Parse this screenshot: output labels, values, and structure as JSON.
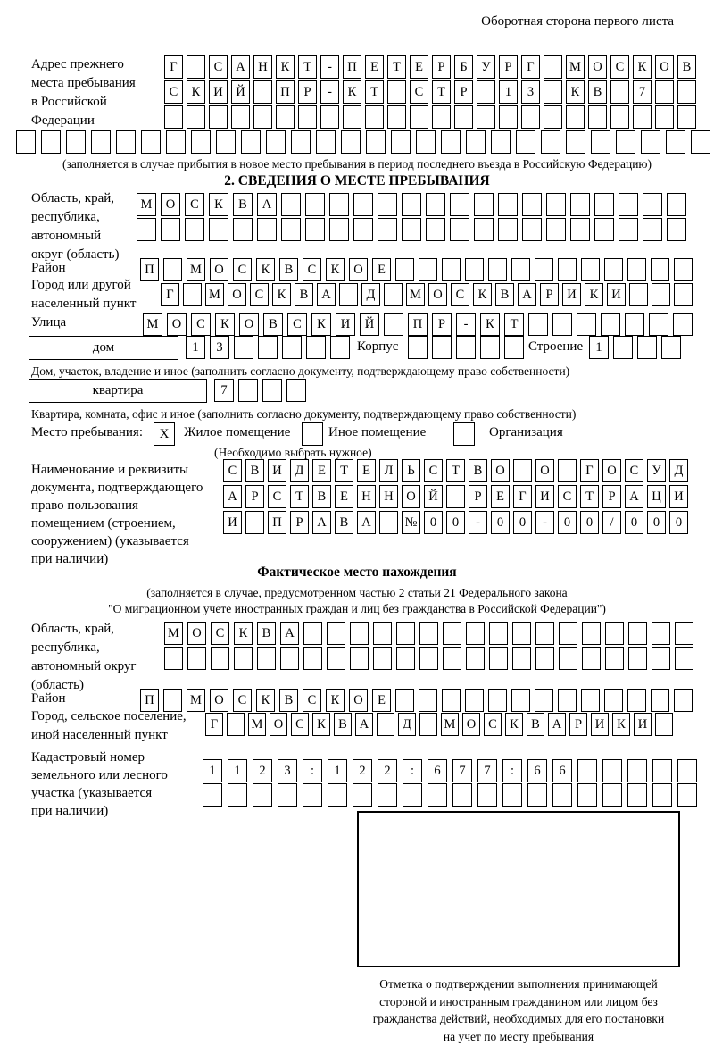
{
  "page": {
    "header_note": "Оборотная сторона первого листа"
  },
  "prev_address": {
    "label_lines": [
      "Адрес прежнего",
      "места пребывания",
      "в Российской",
      "Федерации"
    ],
    "rows": [
      {
        "text": "Г САНКТ-ПЕТЕРБУРГ МОСКОВ",
        "cells": 24
      },
      {
        "text": "СКИЙ ПР-КТ СТР 13 КВ 7",
        "cells": 24
      },
      {
        "text": "",
        "cells": 24
      }
    ],
    "overflow_row": {
      "text": "",
      "cells": 28
    },
    "note": "(заполняется в случае прибытия в новое место пребывания в период последнего въезда в Российскую Федерацию)"
  },
  "section2": {
    "title": "2. СВЕДЕНИЯ О МЕСТЕ ПРЕБЫВАНИЯ",
    "region": {
      "label_lines": [
        "Область, край,",
        "республика,",
        "автономный",
        "округ (область)"
      ],
      "rows": [
        {
          "text": "МОСКВА",
          "cells": 23
        },
        {
          "text": "",
          "cells": 23
        }
      ]
    },
    "district": {
      "label": "Район",
      "row": {
        "text": "П МОСКВСКОЕ",
        "cells": 24
      }
    },
    "city": {
      "label_lines": [
        "Город или другой",
        "населенный пункт"
      ],
      "row": {
        "text": "Г МОСКВА Д МОСКВАРИКИ",
        "cells": 24
      }
    },
    "street": {
      "label": "Улица",
      "row": {
        "text": "МОСКОВСКИЙ ПР-КТ",
        "cells": 23
      }
    },
    "house": {
      "type_label": "дом",
      "row": {
        "text": "13",
        "cells": 7
      },
      "korpus_label": "Корпус",
      "korpus_row": {
        "text": "",
        "cells": 5
      },
      "stroenie_label": "Строение",
      "stroenie_row": {
        "text": "1",
        "cells": 4
      },
      "note": "Дом, участок, владение и иное (заполнить согласно документу, подтверждающему право собственности)"
    },
    "apartment": {
      "type_label": "квартира",
      "row": {
        "text": "7",
        "cells": 4
      },
      "note": "Квартира, комната, офис и иное (заполнить согласно документу, подтверждающему право собственности)"
    },
    "stay_place": {
      "label": "Место пребывания:",
      "options": [
        {
          "label": "Жилое помещение",
          "mark": "X"
        },
        {
          "label": "Иное помещение",
          "mark": ""
        },
        {
          "label": "Организация",
          "mark": ""
        }
      ],
      "note": "(Необходимо выбрать нужное)"
    },
    "document": {
      "label_lines": [
        "Наименование и реквизиты",
        "документа, подтверждающего",
        "право пользования",
        "помещением (строением,",
        "сооружением) (указывается",
        "при наличии)"
      ],
      "rows": [
        {
          "text": "СВИДЕТЕЛЬСТВО О ГОСУД",
          "cells": 21
        },
        {
          "text": "АРСТВЕННОЙ РЕГИСТРАЦИ",
          "cells": 21
        },
        {
          "text": "И ПРАВА №00-00-00/000",
          "cells": 21
        }
      ]
    }
  },
  "actual_location": {
    "title": "Фактическое место нахождения",
    "note_lines": [
      "(заполняется в случае, предусмотренном частью 2 статьи 21 Федерального закона",
      "\"О миграционном учете иностранных граждан и лиц без гражданства в Российской Федерации\")"
    ],
    "region": {
      "label_lines": [
        "Область, край,",
        "республика,",
        "автономный округ",
        "(область)"
      ],
      "rows": [
        {
          "text": "МОСКВА",
          "cells": 23
        },
        {
          "text": "",
          "cells": 23
        }
      ]
    },
    "district": {
      "label": "Район",
      "row": {
        "text": "П МОСКВСКОЕ",
        "cells": 24
      }
    },
    "city": {
      "label_lines": [
        "Город, сельское поселение,",
        "иной населенный пункт"
      ],
      "row": {
        "text": "Г МОСКВА Д МОСКВАРИКИ",
        "cells": 22
      }
    },
    "cadastral": {
      "label_lines": [
        "Кадастровый номер",
        "земельного или лесного",
        "участка (указывается",
        "при наличии)"
      ],
      "rows": [
        {
          "text": "1123:122:677:66",
          "cells": 20
        },
        {
          "text": "",
          "cells": 20
        }
      ]
    },
    "stamp_note_lines": [
      "Отметка о подтверждении выполнения принимающей",
      "стороной и иностранным гражданином или лицом без",
      "гражданства действий, необходимых для его постановки",
      "на учет по месту пребывания"
    ]
  }
}
